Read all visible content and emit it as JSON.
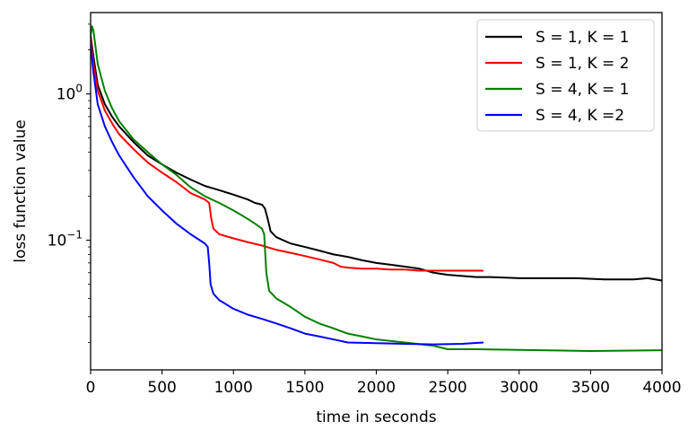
{
  "chart_data": {
    "type": "line",
    "title": "",
    "xlabel": "time in seconds",
    "ylabel": "loss function value",
    "xlim": [
      0,
      4000
    ],
    "ylim": [
      0.013,
      3.6
    ],
    "yscale": "log",
    "grid": false,
    "legend_position": "top-right",
    "x_ticks": [
      {
        "value": 0,
        "label": "0"
      },
      {
        "value": 500,
        "label": "500"
      },
      {
        "value": 1000,
        "label": "1000"
      },
      {
        "value": 1500,
        "label": "1500"
      },
      {
        "value": 2000,
        "label": "2000"
      },
      {
        "value": 2500,
        "label": "2500"
      },
      {
        "value": 3000,
        "label": "3000"
      },
      {
        "value": 3500,
        "label": "3500"
      },
      {
        "value": 4000,
        "label": "4000"
      }
    ],
    "y_major_ticks": [
      {
        "value": 1,
        "base": "10",
        "exp": "0"
      },
      {
        "value": 0.1,
        "base": "10",
        "exp": "−1"
      }
    ],
    "y_minor_ticks": [
      0.02,
      0.03,
      0.04,
      0.05,
      0.06,
      0.07,
      0.08,
      0.09,
      0.2,
      0.3,
      0.4,
      0.5,
      0.6,
      0.7,
      0.8,
      0.9,
      2,
      3
    ],
    "series": [
      {
        "name": "S = 1, K = 1",
        "color": "#000000",
        "points": [
          [
            0,
            2.5
          ],
          [
            20,
            1.8
          ],
          [
            50,
            1.15
          ],
          [
            100,
            0.85
          ],
          [
            150,
            0.7
          ],
          [
            200,
            0.6
          ],
          [
            300,
            0.47
          ],
          [
            400,
            0.38
          ],
          [
            500,
            0.33
          ],
          [
            600,
            0.29
          ],
          [
            700,
            0.26
          ],
          [
            800,
            0.235
          ],
          [
            900,
            0.22
          ],
          [
            1000,
            0.205
          ],
          [
            1100,
            0.19
          ],
          [
            1150,
            0.18
          ],
          [
            1200,
            0.175
          ],
          [
            1220,
            0.165
          ],
          [
            1240,
            0.14
          ],
          [
            1260,
            0.115
          ],
          [
            1300,
            0.105
          ],
          [
            1400,
            0.095
          ],
          [
            1500,
            0.09
          ],
          [
            1600,
            0.085
          ],
          [
            1700,
            0.08
          ],
          [
            1800,
            0.077
          ],
          [
            1900,
            0.073
          ],
          [
            2000,
            0.07
          ],
          [
            2100,
            0.068
          ],
          [
            2200,
            0.066
          ],
          [
            2300,
            0.064
          ],
          [
            2400,
            0.06
          ],
          [
            2500,
            0.058
          ],
          [
            2600,
            0.057
          ],
          [
            2700,
            0.056
          ],
          [
            2800,
            0.056
          ],
          [
            3000,
            0.055
          ],
          [
            3200,
            0.055
          ],
          [
            3400,
            0.055
          ],
          [
            3600,
            0.054
          ],
          [
            3800,
            0.054
          ],
          [
            3900,
            0.055
          ],
          [
            4000,
            0.053
          ]
        ]
      },
      {
        "name": "S = 1, K = 2",
        "color": "#ff0000",
        "points": [
          [
            0,
            2.4
          ],
          [
            20,
            1.6
          ],
          [
            50,
            1.05
          ],
          [
            100,
            0.77
          ],
          [
            150,
            0.63
          ],
          [
            200,
            0.53
          ],
          [
            300,
            0.42
          ],
          [
            400,
            0.34
          ],
          [
            500,
            0.29
          ],
          [
            600,
            0.25
          ],
          [
            700,
            0.21
          ],
          [
            800,
            0.19
          ],
          [
            830,
            0.18
          ],
          [
            845,
            0.14
          ],
          [
            860,
            0.12
          ],
          [
            900,
            0.11
          ],
          [
            1000,
            0.103
          ],
          [
            1100,
            0.097
          ],
          [
            1200,
            0.092
          ],
          [
            1300,
            0.086
          ],
          [
            1400,
            0.082
          ],
          [
            1500,
            0.078
          ],
          [
            1600,
            0.074
          ],
          [
            1700,
            0.07
          ],
          [
            1750,
            0.066
          ],
          [
            1800,
            0.065
          ],
          [
            1900,
            0.064
          ],
          [
            2000,
            0.064
          ],
          [
            2100,
            0.063
          ],
          [
            2200,
            0.063
          ],
          [
            2300,
            0.062
          ],
          [
            2400,
            0.062
          ],
          [
            2500,
            0.062
          ],
          [
            2600,
            0.062
          ],
          [
            2700,
            0.062
          ],
          [
            2750,
            0.062
          ]
        ]
      },
      {
        "name": "S = 4, K = 1",
        "color": "#008000",
        "points": [
          [
            0,
            2.5
          ],
          [
            10,
            2.9
          ],
          [
            20,
            2.7
          ],
          [
            50,
            1.6
          ],
          [
            100,
            1.05
          ],
          [
            150,
            0.8
          ],
          [
            200,
            0.65
          ],
          [
            300,
            0.49
          ],
          [
            400,
            0.4
          ],
          [
            500,
            0.33
          ],
          [
            600,
            0.28
          ],
          [
            700,
            0.23
          ],
          [
            800,
            0.2
          ],
          [
            900,
            0.18
          ],
          [
            1000,
            0.16
          ],
          [
            1100,
            0.14
          ],
          [
            1150,
            0.13
          ],
          [
            1200,
            0.12
          ],
          [
            1215,
            0.11
          ],
          [
            1230,
            0.06
          ],
          [
            1250,
            0.045
          ],
          [
            1300,
            0.04
          ],
          [
            1400,
            0.035
          ],
          [
            1500,
            0.03
          ],
          [
            1600,
            0.027
          ],
          [
            1700,
            0.025
          ],
          [
            1800,
            0.023
          ],
          [
            1900,
            0.022
          ],
          [
            2000,
            0.021
          ],
          [
            2200,
            0.02
          ],
          [
            2400,
            0.019
          ],
          [
            2500,
            0.018
          ],
          [
            2700,
            0.018
          ],
          [
            3000,
            0.0178
          ],
          [
            3500,
            0.0175
          ],
          [
            4000,
            0.0177
          ]
        ]
      },
      {
        "name": "S = 4, K =2",
        "color": "#0000ff",
        "points": [
          [
            0,
            2.2
          ],
          [
            20,
            1.4
          ],
          [
            50,
            0.85
          ],
          [
            100,
            0.6
          ],
          [
            150,
            0.47
          ],
          [
            200,
            0.38
          ],
          [
            300,
            0.27
          ],
          [
            400,
            0.2
          ],
          [
            500,
            0.16
          ],
          [
            600,
            0.13
          ],
          [
            700,
            0.11
          ],
          [
            800,
            0.095
          ],
          [
            820,
            0.09
          ],
          [
            830,
            0.07
          ],
          [
            840,
            0.05
          ],
          [
            860,
            0.043
          ],
          [
            900,
            0.039
          ],
          [
            1000,
            0.034
          ],
          [
            1100,
            0.031
          ],
          [
            1200,
            0.029
          ],
          [
            1300,
            0.027
          ],
          [
            1400,
            0.025
          ],
          [
            1500,
            0.023
          ],
          [
            1600,
            0.022
          ],
          [
            1700,
            0.021
          ],
          [
            1800,
            0.02
          ],
          [
            2000,
            0.0198
          ],
          [
            2200,
            0.0196
          ],
          [
            2400,
            0.0194
          ],
          [
            2600,
            0.0196
          ],
          [
            2750,
            0.02
          ]
        ]
      }
    ]
  }
}
